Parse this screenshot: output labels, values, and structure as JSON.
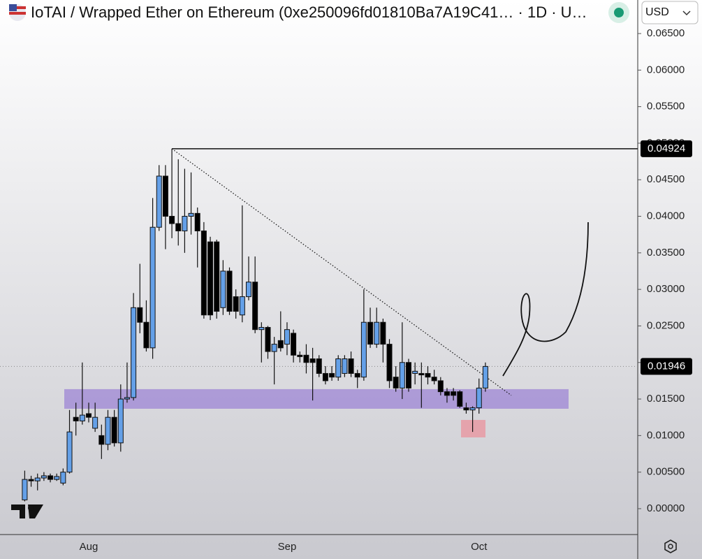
{
  "chart_data": {
    "type": "candlestick",
    "title": "IoTAI / Wrapped Ether on Ethereum (0xe250096fd01810Ba7A19C41… · 1D · U…",
    "currency": "USD",
    "categories": [
      null,
      null,
      null,
      null,
      null,
      null,
      null,
      null,
      null,
      null,
      "Aug",
      null,
      null,
      null,
      null,
      null,
      null,
      null,
      null,
      null,
      null,
      null,
      null,
      null,
      null,
      null,
      null,
      null,
      null,
      null,
      null,
      null,
      null,
      null,
      null,
      null,
      null,
      null,
      null,
      null,
      null,
      "Sep",
      null,
      null,
      null,
      null,
      null,
      null,
      null,
      null,
      null,
      null,
      null,
      null,
      null,
      null,
      null,
      null,
      null,
      null,
      null,
      null,
      null,
      null,
      null,
      null,
      null,
      null,
      null,
      null,
      null,
      "Oct",
      null
    ],
    "open": [
      0.0012,
      0.004,
      0.0038,
      0.0042,
      0.0045,
      0.004,
      0.0035,
      0.005,
      0.0125,
      0.012,
      0.013,
      0.011,
      0.01,
      0.0088,
      0.0125,
      0.009,
      0.015,
      0.0152,
      0.0275,
      0.0255,
      0.022,
      0.0385,
      0.0455,
      0.04,
      0.039,
      0.038,
      0.04,
      0.0404,
      0.038,
      0.0365,
      0.0365,
      0.0275,
      0.0325,
      0.029,
      0.0265,
      0.029,
      0.031,
      0.0245,
      0.0248,
      0.0215,
      0.023,
      0.0225,
      0.024,
      0.021,
      0.021,
      0.0205,
      0.0205,
      0.0185,
      0.0185,
      0.018,
      0.0185,
      0.0205,
      0.0185,
      0.018,
      0.0255,
      0.0225,
      0.0255,
      0.0225,
      0.018,
      0.0165,
      0.02,
      0.0185,
      0.0185,
      0.0185,
      0.018,
      0.0175,
      0.016,
      0.016,
      0.016,
      0.0138,
      0.0135,
      0.0138,
      0.0165
    ],
    "high": [
      0.0052,
      0.0045,
      0.0048,
      0.005,
      0.0048,
      0.0048,
      0.0055,
      0.0135,
      0.0145,
      0.02,
      0.0145,
      0.0145,
      0.0115,
      0.0135,
      0.0135,
      0.017,
      0.02,
      0.0295,
      0.0335,
      0.0285,
      0.0425,
      0.047,
      0.047,
      0.04924,
      0.0478,
      0.0465,
      0.046,
      0.0412,
      0.0392,
      0.0372,
      0.0368,
      0.034,
      0.033,
      0.03,
      0.0415,
      0.0345,
      0.0345,
      0.0255,
      0.025,
      0.0235,
      0.027,
      0.0255,
      0.0245,
      0.0215,
      0.0225,
      0.022,
      0.021,
      0.0195,
      0.0195,
      0.021,
      0.021,
      0.0215,
      0.019,
      0.03,
      0.0275,
      0.0275,
      0.026,
      0.0232,
      0.0195,
      0.0255,
      0.0205,
      0.02,
      0.02,
      0.0195,
      0.019,
      0.018,
      0.0165,
      0.0165,
      0.0162,
      0.0145,
      0.014,
      0.0178,
      0.02
    ],
    "low": [
      0.001,
      0.003,
      0.0025,
      0.0038,
      0.0036,
      0.0038,
      0.0032,
      0.0048,
      0.01,
      0.0115,
      0.0118,
      0.0105,
      0.0068,
      0.008,
      0.0085,
      0.0078,
      0.0145,
      0.0148,
      0.024,
      0.0215,
      0.0205,
      0.038,
      0.0355,
      0.037,
      0.036,
      0.035,
      0.0375,
      0.033,
      0.026,
      0.0258,
      0.026,
      0.0265,
      0.0265,
      0.026,
      0.0255,
      0.0285,
      0.024,
      0.02,
      0.0205,
      0.017,
      0.0215,
      0.021,
      0.02,
      0.02,
      0.0185,
      0.0148,
      0.018,
      0.017,
      0.0175,
      0.0175,
      0.018,
      0.018,
      0.0165,
      0.0175,
      0.022,
      0.022,
      0.02,
      0.0165,
      0.016,
      0.015,
      0.016,
      0.017,
      0.0138,
      0.017,
      0.017,
      0.0155,
      0.0145,
      0.0148,
      0.0138,
      0.013,
      0.0105,
      0.013,
      0.016
    ],
    "close": [
      0.004,
      0.0038,
      0.0042,
      0.0045,
      0.004,
      0.0044,
      0.005,
      0.0105,
      0.012,
      0.0128,
      0.0125,
      0.0125,
      0.0088,
      0.0125,
      0.009,
      0.015,
      0.0152,
      0.0275,
      0.0255,
      0.022,
      0.0385,
      0.0455,
      0.04,
      0.039,
      0.038,
      0.04,
      0.0404,
      0.038,
      0.0265,
      0.0265,
      0.027,
      0.0325,
      0.027,
      0.027,
      0.029,
      0.031,
      0.0245,
      0.0248,
      0.0215,
      0.0225,
      0.022,
      0.0245,
      0.021,
      0.0208,
      0.02,
      0.02,
      0.0185,
      0.0175,
      0.018,
      0.0205,
      0.0205,
      0.0185,
      0.018,
      0.0255,
      0.0225,
      0.0255,
      0.0225,
      0.0175,
      0.0165,
      0.02,
      0.0165,
      0.0188,
      0.0183,
      0.018,
      0.0175,
      0.016,
      0.0155,
      0.0155,
      0.014,
      0.0135,
      0.0138,
      0.0165,
      0.01946
    ],
    "up_color": "#64a0e8",
    "down_color": "#000000",
    "ylim": [
      -0.00354,
      0.06959
    ],
    "yticks": [
      {
        "value": 0.065,
        "label": "0.06500"
      },
      {
        "value": 0.06,
        "label": "0.06000"
      },
      {
        "value": 0.055,
        "label": "0.05500"
      },
      {
        "value": 0.05,
        "label": "0.05000"
      },
      {
        "value": 0.045,
        "label": "0.04500"
      },
      {
        "value": 0.04,
        "label": "0.04000"
      },
      {
        "value": 0.035,
        "label": "0.03500"
      },
      {
        "value": 0.03,
        "label": "0.03000"
      },
      {
        "value": 0.025,
        "label": "0.02500"
      },
      {
        "value": 0.02,
        "label": "0.02000"
      },
      {
        "value": 0.015,
        "label": "0.01500"
      },
      {
        "value": 0.01,
        "label": "0.01000"
      },
      {
        "value": 0.005,
        "label": "0.00500"
      },
      {
        "value": 0,
        "label": "0.00000"
      }
    ],
    "price_labels": [
      0.04924,
      0.01946
    ],
    "support_zone": [
      0.01367,
      0.01635
    ],
    "support_color": "#a48fd6",
    "target_box": [
      0.00975,
      0.01214
    ],
    "target_color": "#e89aa3",
    "trendline": [
      0.04924,
      0.0155
    ]
  }
}
